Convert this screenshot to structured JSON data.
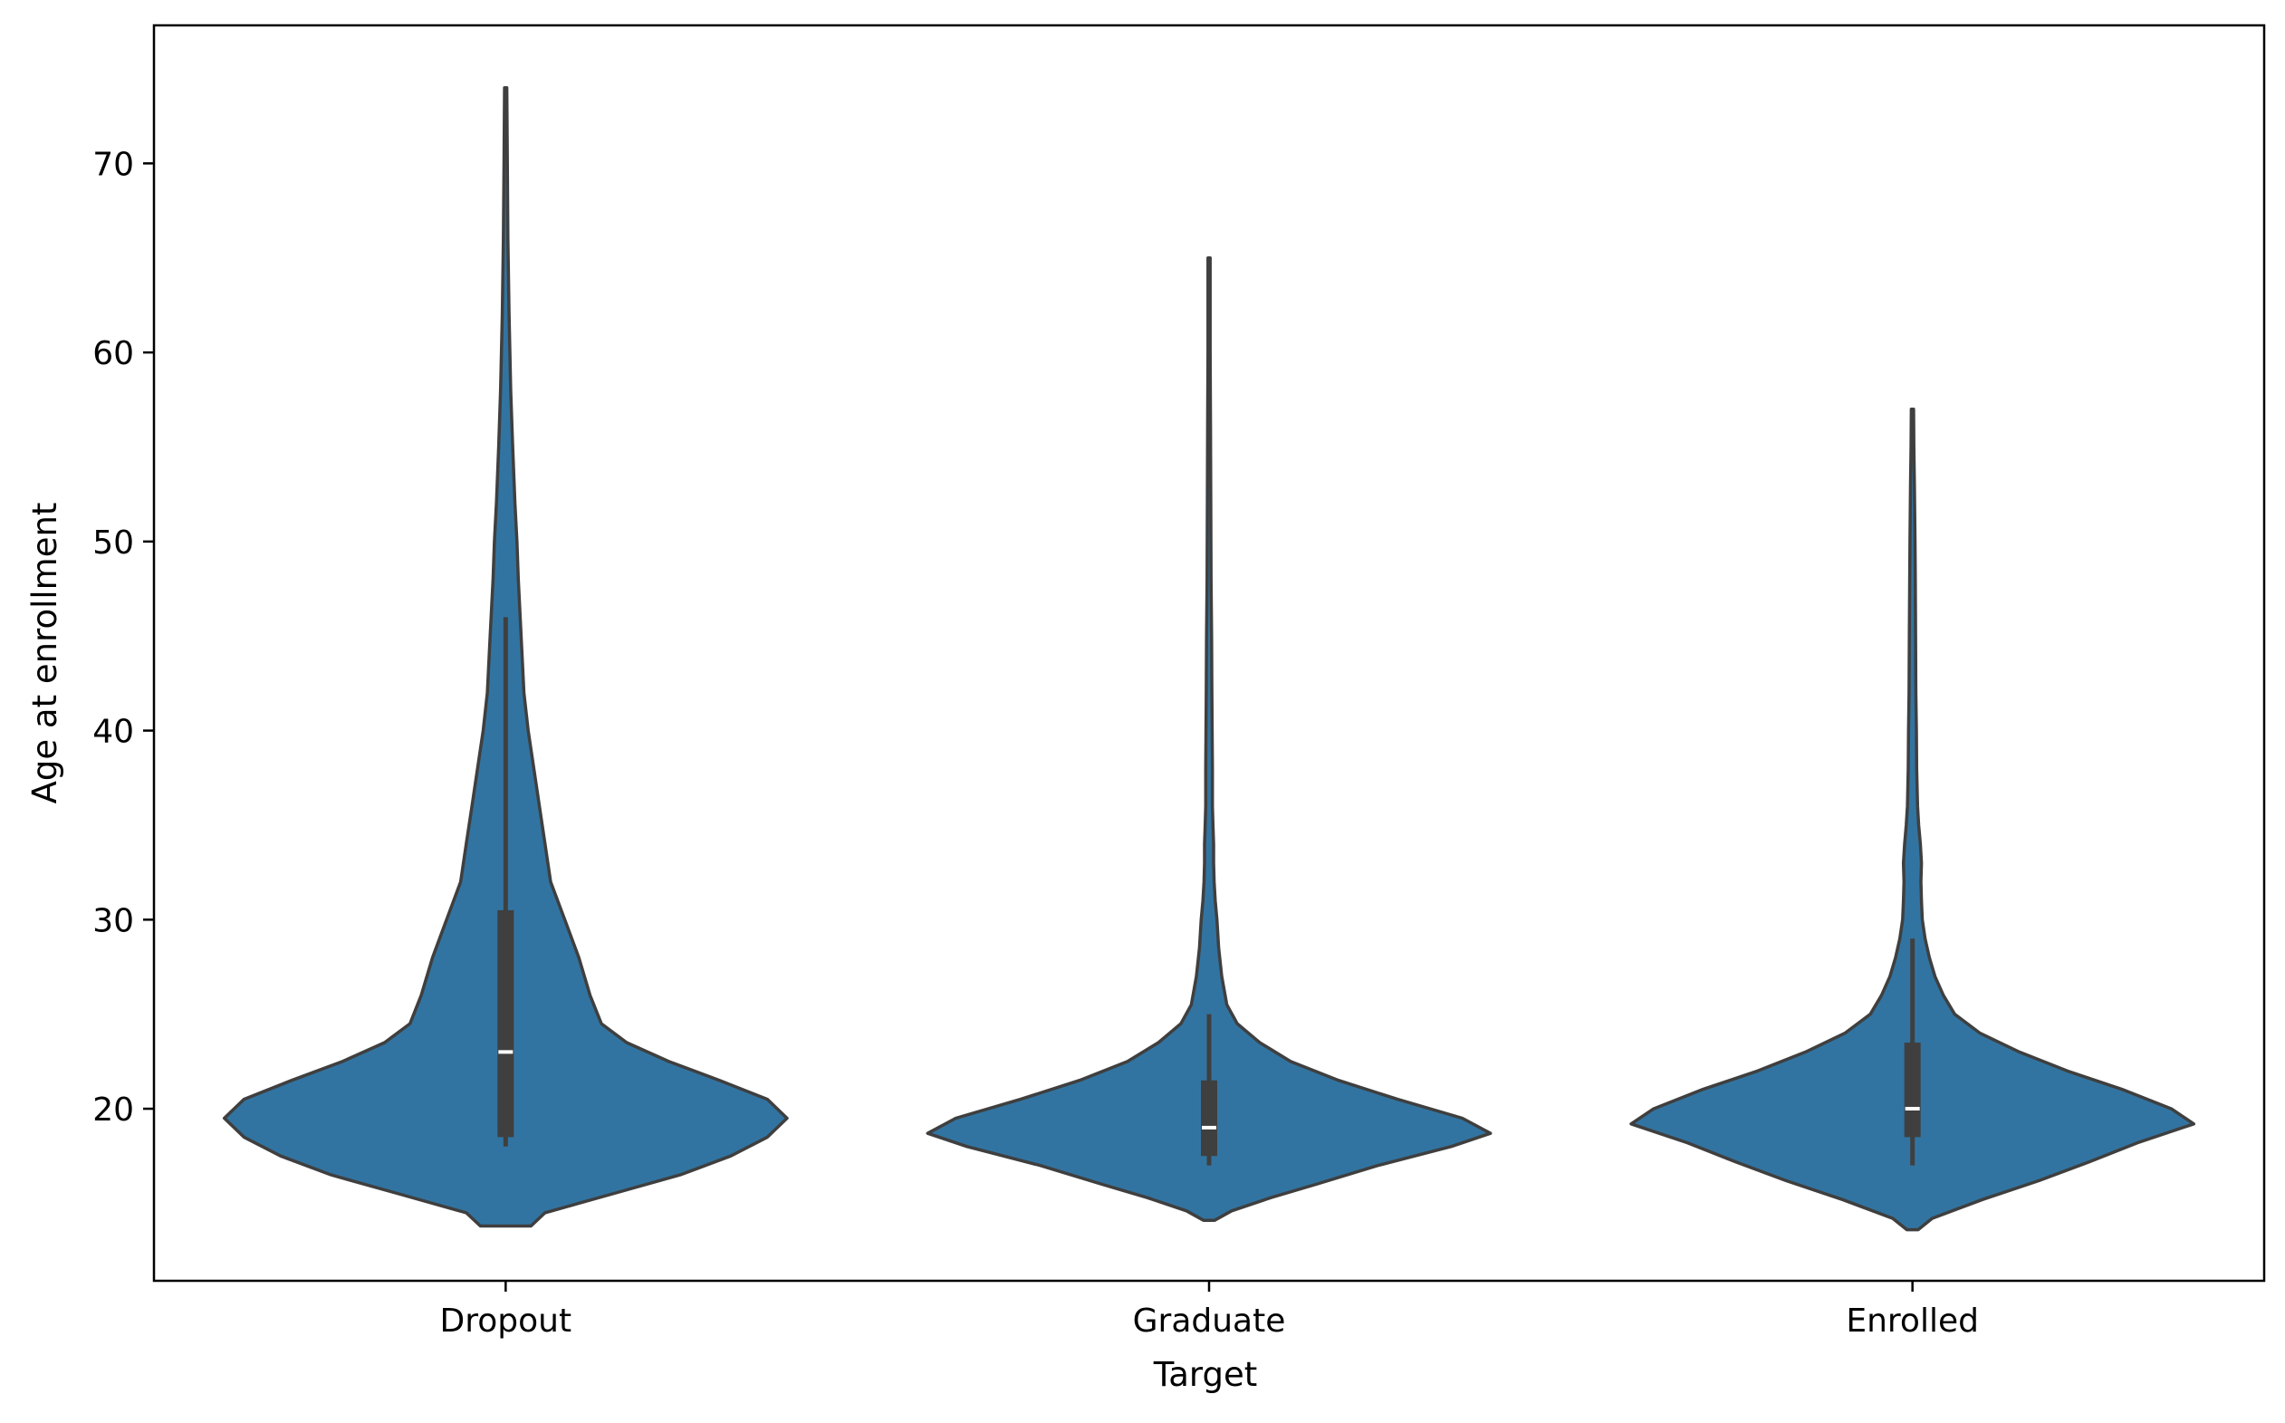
{
  "chart_data": {
    "type": "violin",
    "xlabel": "Target",
    "ylabel": "Age at enrollment",
    "categories": [
      "Dropout",
      "Graduate",
      "Enrolled"
    ],
    "ylim": [
      10.9,
      77.3
    ],
    "yticks": [
      20,
      30,
      40,
      50,
      60,
      70
    ],
    "grid": false,
    "color": "#3274a1",
    "edge_color": "#3f3f3f",
    "series": [
      {
        "category": "Dropout",
        "min": 18,
        "q1": 18.5,
        "median": 23,
        "q3": 30.5,
        "whisker_high": 46,
        "max": 74,
        "kde_low": 13.8,
        "kde_high": 74,
        "density": [
          [
            13.8,
            0.09
          ],
          [
            14.5,
            0.14
          ],
          [
            15.5,
            0.38
          ],
          [
            16.5,
            0.62
          ],
          [
            17.5,
            0.8
          ],
          [
            18.5,
            0.93
          ],
          [
            19.5,
            1.0
          ],
          [
            20.5,
            0.93
          ],
          [
            21.5,
            0.76
          ],
          [
            22.5,
            0.58
          ],
          [
            23.5,
            0.43
          ],
          [
            24.5,
            0.34
          ],
          [
            26,
            0.3
          ],
          [
            28,
            0.26
          ],
          [
            30,
            0.21
          ],
          [
            32,
            0.16
          ],
          [
            34,
            0.14
          ],
          [
            36,
            0.12
          ],
          [
            38,
            0.1
          ],
          [
            40,
            0.08
          ],
          [
            42,
            0.065
          ],
          [
            45,
            0.055
          ],
          [
            48,
            0.045
          ],
          [
            50,
            0.04
          ],
          [
            52,
            0.033
          ],
          [
            55,
            0.025
          ],
          [
            58,
            0.018
          ],
          [
            62,
            0.012
          ],
          [
            66,
            0.008
          ],
          [
            70,
            0.006
          ],
          [
            74,
            0.004
          ]
        ]
      },
      {
        "category": "Graduate",
        "min": 17,
        "q1": 17.5,
        "median": 19,
        "q3": 21.5,
        "whisker_high": 25,
        "max": 65,
        "kde_low": 14.1,
        "kde_high": 65,
        "density": [
          [
            14.1,
            0.02
          ],
          [
            14.6,
            0.08
          ],
          [
            15.3,
            0.22
          ],
          [
            16,
            0.38
          ],
          [
            17,
            0.6
          ],
          [
            18,
            0.86
          ],
          [
            18.7,
            1.0
          ],
          [
            19.5,
            0.9
          ],
          [
            20.5,
            0.67
          ],
          [
            21.5,
            0.46
          ],
          [
            22.5,
            0.29
          ],
          [
            23.5,
            0.18
          ],
          [
            24.5,
            0.1
          ],
          [
            25.5,
            0.063
          ],
          [
            27,
            0.045
          ],
          [
            28.5,
            0.034
          ],
          [
            30,
            0.028
          ],
          [
            31,
            0.022
          ],
          [
            32,
            0.018
          ],
          [
            33,
            0.016
          ],
          [
            34,
            0.016
          ],
          [
            35,
            0.014
          ],
          [
            36,
            0.012
          ],
          [
            38,
            0.012
          ],
          [
            40,
            0.011
          ],
          [
            42,
            0.01
          ],
          [
            45,
            0.009
          ],
          [
            48,
            0.007
          ],
          [
            52,
            0.006
          ],
          [
            56,
            0.005
          ],
          [
            60,
            0.004
          ],
          [
            65,
            0.004
          ]
        ]
      },
      {
        "category": "Enrolled",
        "min": 17,
        "q1": 18.5,
        "median": 20,
        "q3": 23.5,
        "whisker_high": 29,
        "max": 57,
        "kde_low": 13.6,
        "kde_high": 57,
        "density": [
          [
            13.6,
            0.02
          ],
          [
            14.2,
            0.07
          ],
          [
            15.2,
            0.25
          ],
          [
            16.2,
            0.45
          ],
          [
            17.2,
            0.63
          ],
          [
            18.2,
            0.8
          ],
          [
            19.2,
            1.0
          ],
          [
            20,
            0.92
          ],
          [
            21,
            0.75
          ],
          [
            22,
            0.55
          ],
          [
            23,
            0.38
          ],
          [
            24,
            0.24
          ],
          [
            25,
            0.15
          ],
          [
            26,
            0.11
          ],
          [
            27,
            0.08
          ],
          [
            28,
            0.06
          ],
          [
            29,
            0.045
          ],
          [
            30,
            0.035
          ],
          [
            31,
            0.032
          ],
          [
            32,
            0.03
          ],
          [
            33,
            0.032
          ],
          [
            34,
            0.028
          ],
          [
            35,
            0.022
          ],
          [
            36,
            0.018
          ],
          [
            38,
            0.015
          ],
          [
            40,
            0.014
          ],
          [
            42,
            0.012
          ],
          [
            45,
            0.011
          ],
          [
            48,
            0.01
          ],
          [
            50,
            0.009
          ],
          [
            53,
            0.007
          ],
          [
            55,
            0.005
          ],
          [
            57,
            0.004
          ]
        ]
      }
    ]
  }
}
